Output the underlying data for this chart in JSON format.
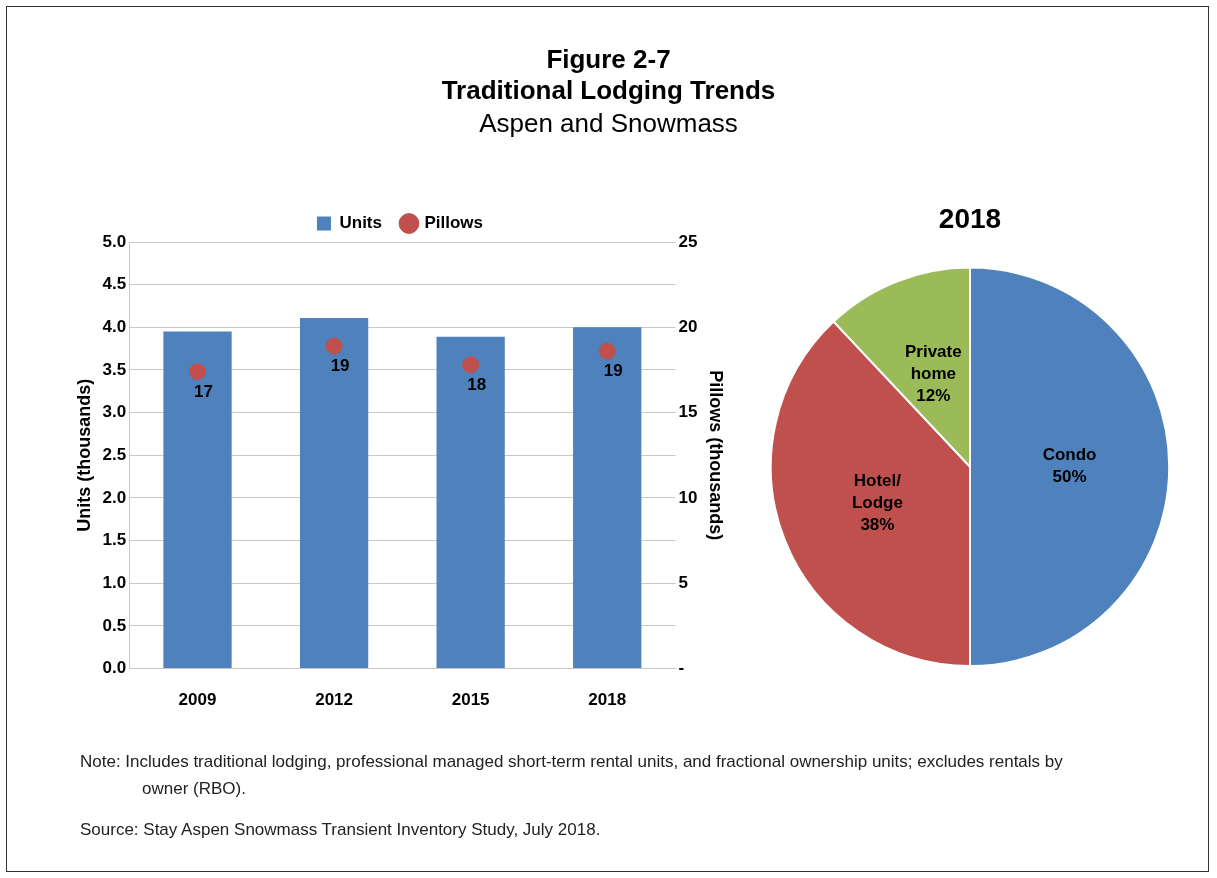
{
  "chart_data": [
    {
      "type": "bar",
      "title": "Figure 2-7\nTraditional Lodging Trends",
      "subtitle": "Aspen and Snowmass",
      "ylabel": "Units (thousands)",
      "y2label": "Pillows (thousands)",
      "categories": [
        "2009",
        "2012",
        "2015",
        "2018"
      ],
      "series": [
        {
          "name": "Units",
          "color": "#4f81bd",
          "values": [
            3.95,
            4.11,
            3.89,
            4.0
          ]
        },
        {
          "name": "Pillows",
          "type": "scatter",
          "axis": "y2",
          "marker": "circle",
          "color": "#c0504d",
          "values": [
            17.4,
            18.9,
            17.8,
            18.6
          ],
          "value_labels": [
            "17",
            "19",
            "18",
            "19"
          ]
        }
      ],
      "ylim": [
        0,
        5
      ],
      "yticks": [
        {
          "value": 0,
          "label": "0.0"
        },
        {
          "value": 0.5,
          "label": "0.5"
        },
        {
          "value": 1,
          "label": "1.0"
        },
        {
          "value": 1.5,
          "label": "1.5"
        },
        {
          "value": 2,
          "label": "2.0"
        },
        {
          "value": 2.5,
          "label": "2.5"
        },
        {
          "value": 3,
          "label": "3.0"
        },
        {
          "value": 3.5,
          "label": "3.5"
        },
        {
          "value": 4,
          "label": "4.0"
        },
        {
          "value": 4.5,
          "label": "4.5"
        },
        {
          "value": 5,
          "label": "5.0"
        }
      ],
      "y2lim": [
        0,
        25
      ],
      "y2ticks": [
        {
          "value": 0,
          "label": "-"
        },
        5,
        10,
        15,
        20,
        25
      ],
      "grid": "y",
      "legend": "top",
      "annotations": [
        "Note: Includes traditional lodging, professional managed short-term rental units, and fractional ownership units; excludes rentals by owner (RBO).",
        "Source:  Stay Aspen Snowmass Transient Inventory Study, July 2018."
      ]
    },
    {
      "type": "pie",
      "title": "2018",
      "categories": [
        "Condo",
        "Hotel/\nLodge",
        "Private\nhome"
      ],
      "values": [
        50,
        38,
        12
      ],
      "colors": [
        "#4f81bd",
        "#c0504d",
        "#9bbb59"
      ],
      "value_labels": [
        "50%",
        "38%",
        "12%"
      ],
      "legend": false
    }
  ]
}
